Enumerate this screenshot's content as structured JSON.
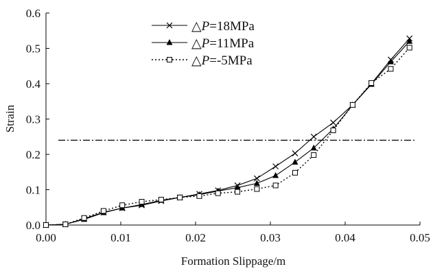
{
  "chart_data": {
    "type": "line",
    "title": "",
    "xlabel": "Formation Slippage/m",
    "ylabel": "Strain",
    "xlim": [
      0.0,
      0.05
    ],
    "ylim": [
      0.0,
      0.6
    ],
    "x_ticks": [
      "0.00",
      "0.01",
      "0.02",
      "0.03",
      "0.04",
      "0.05"
    ],
    "y_ticks": [
      "0.0",
      "0.1",
      "0.2",
      "0.3",
      "0.4",
      "0.5",
      "0.6"
    ],
    "grid": false,
    "legend_position": "top-center",
    "threshold_line": {
      "y": 0.24,
      "style": "dash-dot"
    },
    "series": [
      {
        "name": "△P=18MPa",
        "legend_symbol": "△",
        "legend_italic": "P",
        "legend_rest": "=18MPa",
        "marker": "x",
        "line": "solid",
        "color": "#000000",
        "x": [
          0.0,
          0.0026,
          0.0051,
          0.0077,
          0.0102,
          0.0128,
          0.0154,
          0.0179,
          0.0205,
          0.023,
          0.0256,
          0.0282,
          0.0307,
          0.0333,
          0.0358,
          0.0384,
          0.041,
          0.0435,
          0.0461,
          0.0486
        ],
        "y": [
          0.0,
          0.002,
          0.018,
          0.036,
          0.048,
          0.056,
          0.068,
          0.078,
          0.088,
          0.098,
          0.112,
          0.132,
          0.166,
          0.203,
          0.25,
          0.29,
          0.34,
          0.4,
          0.468,
          0.528
        ]
      },
      {
        "name": "△P=11MPa",
        "legend_symbol": "△",
        "legend_italic": "P",
        "legend_rest": "=11MPa",
        "marker": "triangle",
        "line": "solid",
        "color": "#000000",
        "x": [
          0.0,
          0.0026,
          0.0051,
          0.0077,
          0.0102,
          0.0128,
          0.0154,
          0.0179,
          0.0205,
          0.023,
          0.0256,
          0.0282,
          0.0307,
          0.0333,
          0.0358,
          0.0384,
          0.041,
          0.0435,
          0.0461,
          0.0486
        ],
        "y": [
          0.0,
          0.002,
          0.016,
          0.035,
          0.048,
          0.058,
          0.07,
          0.078,
          0.086,
          0.096,
          0.106,
          0.118,
          0.14,
          0.178,
          0.218,
          0.272,
          0.34,
          0.398,
          0.462,
          0.52
        ]
      },
      {
        "name": "△P=-5MPa",
        "legend_symbol": "△",
        "legend_italic": "P",
        "legend_rest": "=-5MPa",
        "marker": "square",
        "line": "dotted",
        "color": "#000000",
        "x": [
          0.0,
          0.0026,
          0.0051,
          0.0077,
          0.0102,
          0.0128,
          0.0154,
          0.0179,
          0.0205,
          0.023,
          0.0256,
          0.0282,
          0.0307,
          0.0333,
          0.0358,
          0.0384,
          0.041,
          0.0435,
          0.0461,
          0.0486
        ],
        "y": [
          0.0,
          0.002,
          0.02,
          0.04,
          0.056,
          0.066,
          0.072,
          0.078,
          0.082,
          0.09,
          0.094,
          0.102,
          0.112,
          0.148,
          0.198,
          0.268,
          0.34,
          0.402,
          0.442,
          0.502
        ]
      }
    ]
  }
}
